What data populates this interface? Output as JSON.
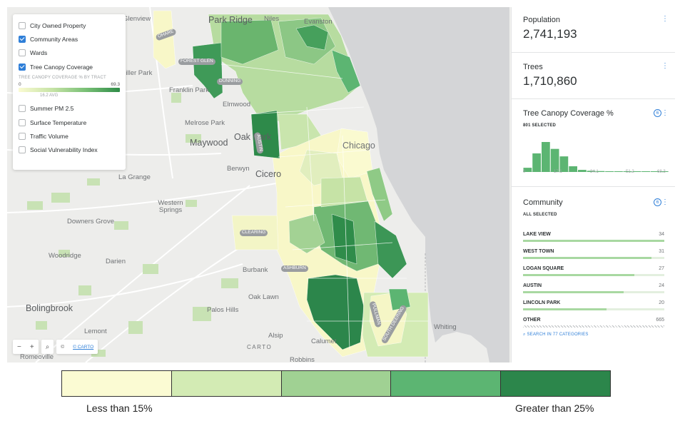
{
  "layers": {
    "items": [
      {
        "label": "City Owned Property",
        "checked": false
      },
      {
        "label": "Community Areas",
        "checked": true
      },
      {
        "label": "Wards",
        "checked": false
      },
      {
        "label": "Tree Canopy Coverage",
        "checked": true
      },
      {
        "label": "Summer PM 2.5",
        "checked": false
      },
      {
        "label": "Surface Temperature",
        "checked": false
      },
      {
        "label": "Traffic Volume",
        "checked": false
      },
      {
        "label": "Social Vulnerability Index",
        "checked": false
      }
    ],
    "legend": {
      "title": "TREE CANOPY COVERAGE % BY TRACT",
      "min": "0",
      "max": "69.3",
      "avg": "16.2 AVG"
    }
  },
  "map": {
    "places": [
      "Park Ridge",
      "Franklin Park",
      "Elmwood",
      "Melrose Park",
      "Maywood",
      "Oak Park",
      "Berwyn",
      "Cicero",
      "Chicago",
      "Western Springs",
      "Downers Grove",
      "Woodridge",
      "Darien",
      "Burbank",
      "Oak Lawn",
      "Palos Hills",
      "Bolingbrook",
      "Lemont",
      "Romeoville",
      "Calumet",
      "Robbins",
      "Whiting",
      "Alsip",
      "Glenview",
      "Niles",
      "Evanston",
      "Schiller Park",
      "La Grange"
    ],
    "highway_labels": [
      "OHARE",
      "DUNNING",
      "AUSTIN",
      "CLEARING",
      "ASHBURN",
      "PULLMAN",
      "SOUTH DEERING",
      "FOREST GLEN"
    ],
    "controls": {
      "zoom_out": "−",
      "zoom_in": "+",
      "search": "⌕",
      "copyright": "©",
      "attribution": "© CARTO"
    },
    "basemap_logo": "CARTO"
  },
  "sidebar": {
    "population": {
      "title": "Population",
      "value": "2,741,193"
    },
    "trees": {
      "title": "Trees",
      "value": "1,710,860"
    },
    "canopy": {
      "title": "Tree Canopy Coverage %",
      "badge": "6",
      "selected": "801 SELECTED",
      "tick_labels": [
        "0",
        "17.1",
        "34.1",
        "51.2",
        "68.3"
      ]
    },
    "community": {
      "title": "Community",
      "badge": "6",
      "selected": "ALL SELECTED",
      "categories": [
        {
          "name": "LAKE VIEW",
          "count": "34",
          "share": 1.0
        },
        {
          "name": "WEST TOWN",
          "count": "31",
          "share": 0.91
        },
        {
          "name": "LOGAN SQUARE",
          "count": "27",
          "share": 0.79
        },
        {
          "name": "AUSTIN",
          "count": "24",
          "share": 0.71
        },
        {
          "name": "LINCOLN PARK",
          "count": "20",
          "share": 0.59
        },
        {
          "name": "OTHER",
          "count": "665",
          "share": 1.0
        }
      ],
      "search": "SEARCH IN 77 CATEGORIES"
    }
  },
  "chart_data": {
    "type": "bar",
    "xlim": [
      0,
      68.3
    ],
    "values": [
      0.14,
      0.62,
      1.0,
      0.77,
      0.52,
      0.19,
      0.07,
      0.04,
      0.03,
      0.02,
      0.02,
      0.01,
      0.01,
      0.01,
      0.01,
      0.02
    ],
    "grid": false,
    "tick_labels": [
      "0",
      "17.1",
      "34.1",
      "51.2",
      "68.3"
    ]
  },
  "bottom_legend": {
    "colors": [
      "#fbfbd3",
      "#d3ebb4",
      "#a0d193",
      "#5cb572",
      "#2c864b"
    ],
    "low_label": "Less than 15%",
    "high_label": "Greater than 25%"
  }
}
